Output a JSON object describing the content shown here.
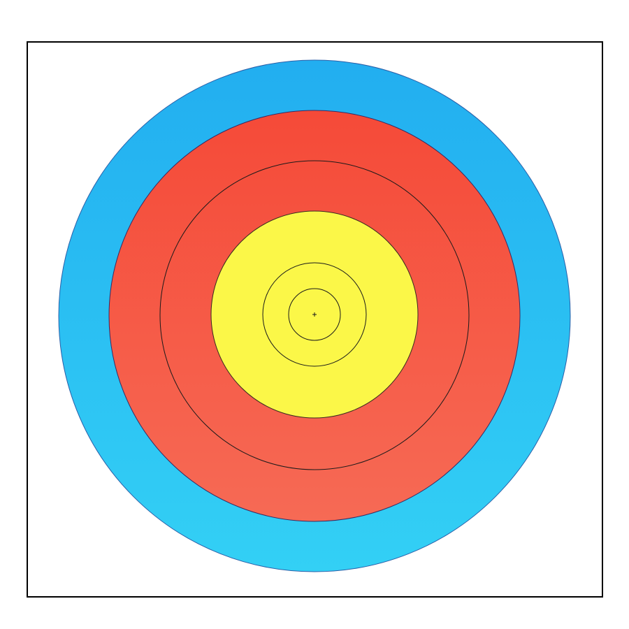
{
  "target": {
    "rings": [
      {
        "name": "blue",
        "color": "#2bb4ee"
      },
      {
        "name": "red",
        "color": "#f5533f"
      },
      {
        "name": "red-inner",
        "color": "#f5533f"
      },
      {
        "name": "yellow",
        "color": "#fbf748"
      },
      {
        "name": "yellow-inner",
        "color": "#fbf748"
      },
      {
        "name": "yellow-center",
        "color": "#fbf748"
      }
    ],
    "line_color": "#1a1a1a",
    "frame_color": "#000000",
    "background": "#ffffff",
    "center_mark": "cross"
  }
}
